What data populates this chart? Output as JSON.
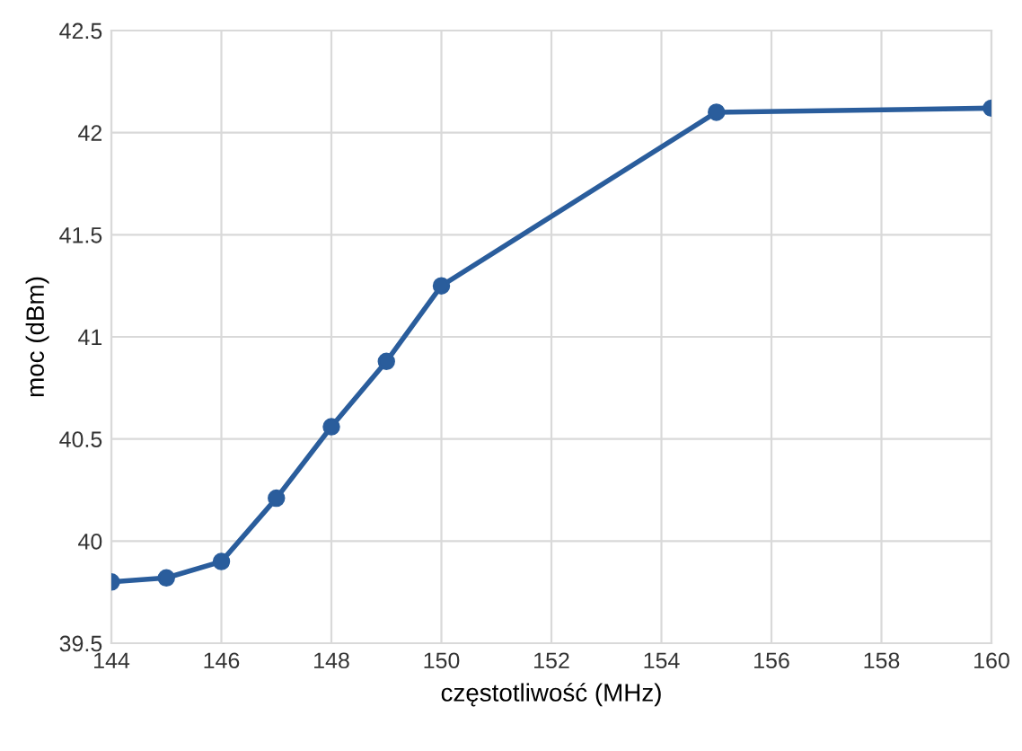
{
  "chart_data": {
    "type": "line",
    "xlabel": "częstotliwość (MHz)",
    "ylabel": "moc (dBm)",
    "x": [
      144,
      145,
      146,
      147,
      148,
      149,
      150,
      155,
      160
    ],
    "series": [
      {
        "color": "#2a5d9c",
        "values": [
          39.8,
          39.82,
          39.9,
          40.21,
          40.56,
          40.88,
          41.25,
          42.1,
          42.12
        ]
      }
    ],
    "xlim": [
      144,
      160
    ],
    "xticks": [
      144,
      146,
      148,
      150,
      152,
      154,
      156,
      158,
      160
    ],
    "ylim": [
      39.5,
      42.5
    ],
    "yticks": [
      39.5,
      40,
      40.5,
      41,
      41.5,
      42,
      42.5
    ],
    "grid": true,
    "marker": "circle",
    "line_style": "solid"
  }
}
